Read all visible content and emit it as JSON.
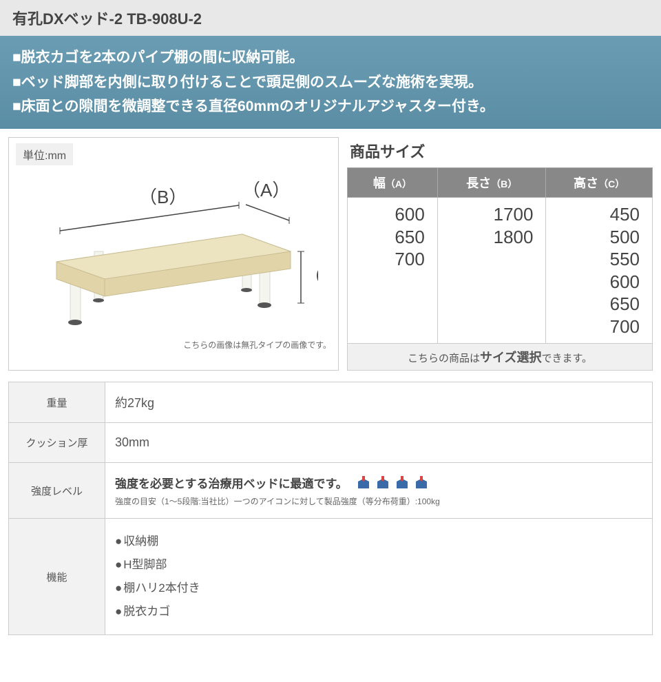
{
  "header": {
    "title": "有孔DXベッド-2 TB-908U-2"
  },
  "features": [
    "■脱衣カゴを2本のパイプ棚の間に収納可能。",
    "■ベッド脚部を内側に取り付けることで頭足側のスムーズな施術を実現。",
    "■床面との隙間を微調整できる直径60mmのオリジナルアジャスター付き。"
  ],
  "diagram": {
    "unit_label": "単位:mm",
    "label_a": "（A）",
    "label_b": "（B）",
    "label_c": "（C）",
    "note": "こちらの画像は無孔タイプの画像です。",
    "colors": {
      "cushion": "#e0d4a8",
      "cushion_top": "#ece3c1",
      "leg": "#f5f5f0",
      "leg_edge": "#d8d8d0",
      "foot": "#555"
    }
  },
  "size": {
    "title": "商品サイズ",
    "headers": [
      {
        "main": "幅",
        "sub": "（A）"
      },
      {
        "main": "長さ",
        "sub": "（B）"
      },
      {
        "main": "高さ",
        "sub": "（C）"
      }
    ],
    "columns": [
      [
        "600",
        "650",
        "700"
      ],
      [
        "1700",
        "1800"
      ],
      [
        "450",
        "500",
        "550",
        "600",
        "650",
        "700"
      ]
    ],
    "note_pre": "こちらの商品は",
    "note_em": "サイズ選択",
    "note_post": "できます。"
  },
  "specs": {
    "weight": {
      "label": "重量",
      "value": "約27kg"
    },
    "cushion": {
      "label": "クッション厚",
      "value": "30mm"
    },
    "strength": {
      "label": "強度レベル",
      "text": "強度を必要とする治療用ベッドに最適です。",
      "icon_count": 4,
      "icon_color_top": "#d94545",
      "icon_color_body": "#3a6aa8",
      "sub": "強度の目安（1～5段階:当社比）一つのアイコンに対して製品強度（等分布荷重）:100kg"
    },
    "functions": {
      "label": "機能",
      "items": [
        "収納棚",
        "H型脚部",
        "棚ハリ2本付き",
        "脱衣カゴ"
      ]
    }
  }
}
